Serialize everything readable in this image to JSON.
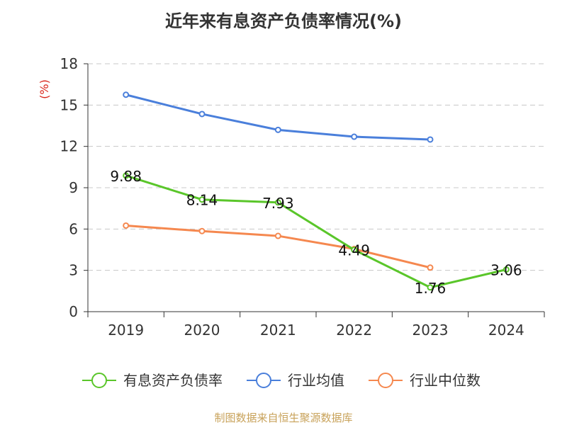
{
  "title": "近年来有息资产负债率情况(%)",
  "footer": "制图数据来自恒生聚源数据库",
  "chart_data": {
    "type": "line",
    "categories": [
      "2019",
      "2020",
      "2021",
      "2022",
      "2023",
      "2024"
    ],
    "ylabel": "(%)",
    "ylabel_color": "#d9271c",
    "ylim": [
      0,
      18
    ],
    "yticks": [
      0,
      3,
      6,
      9,
      12,
      15,
      18
    ],
    "grid": true,
    "legend_position": "bottom",
    "series": [
      {
        "name": "有息资产负债率",
        "color": "#5ac62a",
        "values": [
          9.88,
          8.14,
          7.93,
          4.49,
          1.76,
          3.06
        ],
        "labels": [
          "9.88",
          "8.14",
          "7.93",
          "4.49",
          "1.76",
          "3.06"
        ]
      },
      {
        "name": "行业均值",
        "color": "#4a7fdb",
        "values": [
          15.75,
          14.35,
          13.2,
          12.7,
          12.5,
          null
        ]
      },
      {
        "name": "行业中位数",
        "color": "#f5884f",
        "values": [
          6.25,
          5.85,
          5.5,
          4.55,
          3.2,
          null
        ]
      }
    ]
  }
}
